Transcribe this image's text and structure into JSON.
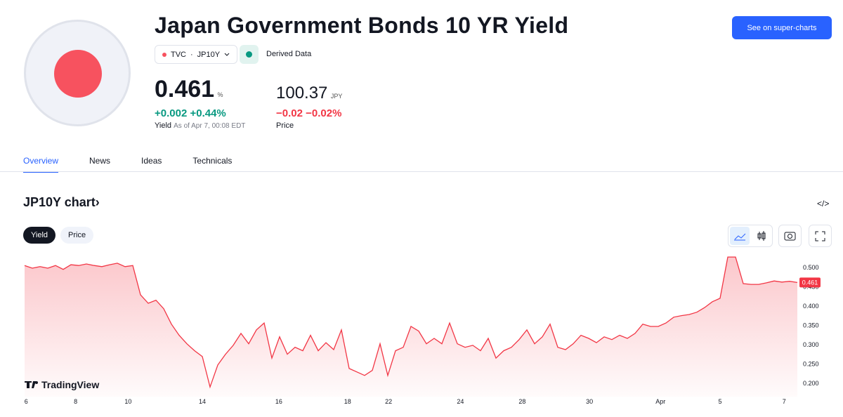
{
  "header": {
    "title": "Japan Government Bonds 10 YR Yield",
    "source": "TVC",
    "symbol": "JP10Y",
    "derived": "Derived Data",
    "button": "See on super-charts"
  },
  "quote": {
    "yield": {
      "value": "0.461",
      "unit": "%",
      "change": "+0.002",
      "change_pct": "+0.44%",
      "label": "Yield",
      "as_of": "As of Apr 7, 00:08 EDT"
    },
    "price": {
      "value": "100.37",
      "unit": "JPY",
      "change": "−0.02",
      "change_pct": "−0.02%",
      "label": "Price"
    }
  },
  "tabs": [
    "Overview",
    "News",
    "Ideas",
    "Technicals"
  ],
  "chart_section": {
    "title": "JP10Y chart",
    "toggles": [
      "Yield",
      "Price"
    ],
    "watermark": "TradingView"
  },
  "chart_data": {
    "type": "line",
    "color": "#f23645",
    "area": true,
    "values": [
      0.505,
      0.498,
      0.502,
      0.498,
      0.505,
      0.495,
      0.507,
      0.505,
      0.509,
      0.505,
      0.502,
      0.507,
      0.511,
      0.502,
      0.505,
      0.429,
      0.407,
      0.415,
      0.393,
      0.353,
      0.324,
      0.302,
      0.284,
      0.269,
      0.19,
      0.247,
      0.275,
      0.298,
      0.329,
      0.302,
      0.338,
      0.356,
      0.265,
      0.32,
      0.275,
      0.293,
      0.284,
      0.324,
      0.284,
      0.305,
      0.287,
      0.338,
      0.238,
      0.229,
      0.22,
      0.233,
      0.302,
      0.22,
      0.284,
      0.293,
      0.347,
      0.335,
      0.302,
      0.316,
      0.302,
      0.356,
      0.302,
      0.293,
      0.298,
      0.284,
      0.316,
      0.265,
      0.284,
      0.293,
      0.313,
      0.338,
      0.302,
      0.32,
      0.353,
      0.293,
      0.287,
      0.302,
      0.324,
      0.316,
      0.305,
      0.32,
      0.313,
      0.324,
      0.316,
      0.329,
      0.353,
      0.347,
      0.347,
      0.356,
      0.371,
      0.375,
      0.378,
      0.384,
      0.396,
      0.411,
      0.42,
      0.527,
      0.527,
      0.458,
      0.456,
      0.456,
      0.46,
      0.465,
      0.462,
      0.464,
      0.461
    ],
    "xlim": [
      0,
      100
    ],
    "xticks": [
      {
        "value": 0.2,
        "label": "6"
      },
      {
        "value": 6.6,
        "label": "8"
      },
      {
        "value": 13.4,
        "label": "10"
      },
      {
        "value": 23,
        "label": "14"
      },
      {
        "value": 32.9,
        "label": "16"
      },
      {
        "value": 41.8,
        "label": "18"
      },
      {
        "value": 47.1,
        "label": "22"
      },
      {
        "value": 56.4,
        "label": "24"
      },
      {
        "value": 64.4,
        "label": "28"
      },
      {
        "value": 73.1,
        "label": "30"
      },
      {
        "value": 82.3,
        "label": "Apr"
      },
      {
        "value": 90,
        "label": "5"
      },
      {
        "value": 98.3,
        "label": "7"
      }
    ],
    "ylim": [
      0.165,
      0.529
    ],
    "yticks": [
      {
        "value": 0.5,
        "label": "0.500"
      },
      {
        "value": 0.45,
        "label": "0.450"
      },
      {
        "value": 0.4,
        "label": "0.400"
      },
      {
        "value": 0.35,
        "label": "0.350"
      },
      {
        "value": 0.3,
        "label": "0.300"
      },
      {
        "value": 0.25,
        "label": "0.250"
      },
      {
        "value": 0.2,
        "label": "0.200"
      }
    ]
  }
}
